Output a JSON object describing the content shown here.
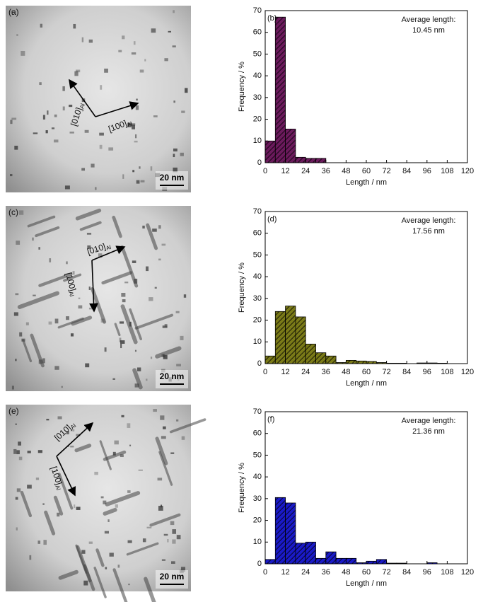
{
  "micrographs": [
    {
      "label": "(a)",
      "scale_bar": "20 nm",
      "directions": [
        {
          "index": "[010]",
          "subscript": "Al"
        },
        {
          "index": "[100]",
          "subscript": "Al"
        }
      ]
    },
    {
      "label": "(c)",
      "scale_bar": "20 nm",
      "directions": [
        {
          "index": "[010]",
          "subscript": "Al"
        },
        {
          "index": "[100]",
          "subscript": "Al"
        }
      ]
    },
    {
      "label": "(e)",
      "scale_bar": "20 nm",
      "directions": [
        {
          "index": "[010]",
          "subscript": "Al"
        },
        {
          "index": "[100]",
          "subscript": "Al"
        }
      ]
    }
  ],
  "chart_data": [
    {
      "type": "histogram",
      "panel_label": "(b)",
      "annotation": [
        "Average length:",
        "10.45 nm"
      ],
      "bins": [
        0,
        6,
        12,
        18,
        24,
        30,
        36
      ],
      "values": [
        10,
        67,
        15.5,
        2.5,
        2,
        2
      ],
      "color": "#6b1a5c",
      "hatch": true,
      "xlabel": "Length / nm",
      "ylabel": "Frequency / %",
      "xlim": [
        0,
        120
      ],
      "xticks": [
        0,
        12,
        24,
        36,
        48,
        60,
        72,
        84,
        96,
        108,
        120
      ],
      "ylim": [
        0,
        70
      ],
      "yticks": [
        0,
        10,
        20,
        30,
        40,
        50,
        60,
        70
      ]
    },
    {
      "type": "histogram",
      "panel_label": "(d)",
      "annotation": [
        "Average length:",
        "17.56 nm"
      ],
      "bins": [
        0,
        6,
        12,
        18,
        24,
        30,
        36,
        42,
        48,
        54,
        60,
        66,
        72,
        78,
        84,
        90,
        96,
        102,
        108
      ],
      "values": [
        3.5,
        24,
        26.5,
        21.5,
        9,
        5,
        3.5,
        0.5,
        1.5,
        1.2,
        1,
        0.5,
        0.2,
        0.2,
        0,
        0.3,
        0.3,
        0.2
      ],
      "color": "#7a7a18",
      "hatch": true,
      "xlabel": "Length / nm",
      "ylabel": "Frequency / %",
      "xlim": [
        0,
        120
      ],
      "xticks": [
        0,
        12,
        24,
        36,
        48,
        60,
        72,
        84,
        96,
        108,
        120
      ],
      "ylim": [
        0,
        70
      ],
      "yticks": [
        0,
        10,
        20,
        30,
        40,
        50,
        60,
        70
      ]
    },
    {
      "type": "histogram",
      "panel_label": "(f)",
      "annotation": [
        "Average length:",
        "21.36 nm"
      ],
      "bins": [
        0,
        6,
        12,
        18,
        24,
        30,
        36,
        42,
        48,
        54,
        60,
        66,
        72,
        78,
        84,
        90,
        96,
        102,
        108
      ],
      "values": [
        2,
        30.5,
        28,
        9.5,
        10,
        2.5,
        5.5,
        2.5,
        2.5,
        0.5,
        1.2,
        2,
        0.3,
        0.3,
        0,
        0,
        0.5,
        0
      ],
      "color": "#1a1ac8",
      "hatch": true,
      "xlabel": "Length / nm",
      "ylabel": "Frequency / %",
      "xlim": [
        0,
        120
      ],
      "xticks": [
        0,
        12,
        24,
        36,
        48,
        60,
        72,
        84,
        96,
        108,
        120
      ],
      "ylim": [
        0,
        70
      ],
      "yticks": [
        0,
        10,
        20,
        30,
        40,
        50,
        60,
        70
      ]
    }
  ]
}
